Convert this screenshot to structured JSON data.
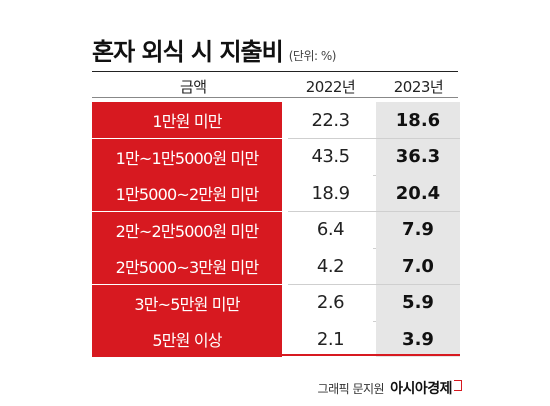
{
  "title": "혼자 외식 시 지출비",
  "unit": "(단위: %)",
  "headers": {
    "category": "금액",
    "year1": "2022년",
    "year2": "2023년"
  },
  "chart_data": {
    "type": "table",
    "title": "혼자 외식 시 지출비",
    "unit": "(단위: %)",
    "categories": [
      "1만원 미만",
      "1만~1만5000원 미만",
      "1만5000~2만원 미만",
      "2만~2만5000원 미만",
      "2만5000~3만원 미만",
      "3만~5만원 미만",
      "5만원 이상"
    ],
    "series": [
      {
        "name": "2022년",
        "values": [
          22.3,
          43.5,
          18.9,
          6.4,
          4.2,
          2.6,
          2.1
        ]
      },
      {
        "name": "2023년",
        "values": [
          18.6,
          36.3,
          20.4,
          7.9,
          7.0,
          5.9,
          3.9
        ]
      }
    ],
    "display": [
      [
        "22.3",
        "18.6"
      ],
      [
        "43.5",
        "36.3"
      ],
      [
        "18.9",
        "20.4"
      ],
      [
        "6.4",
        "7.9"
      ],
      [
        "4.2",
        "7.0"
      ],
      [
        "2.6",
        "5.9"
      ],
      [
        "2.1",
        "3.9"
      ]
    ]
  },
  "credit": {
    "text": "그래픽 문지원",
    "brand": "아시아경제"
  },
  "colors": {
    "accent": "#d71920",
    "highlight_column": "#e6e6e6"
  }
}
